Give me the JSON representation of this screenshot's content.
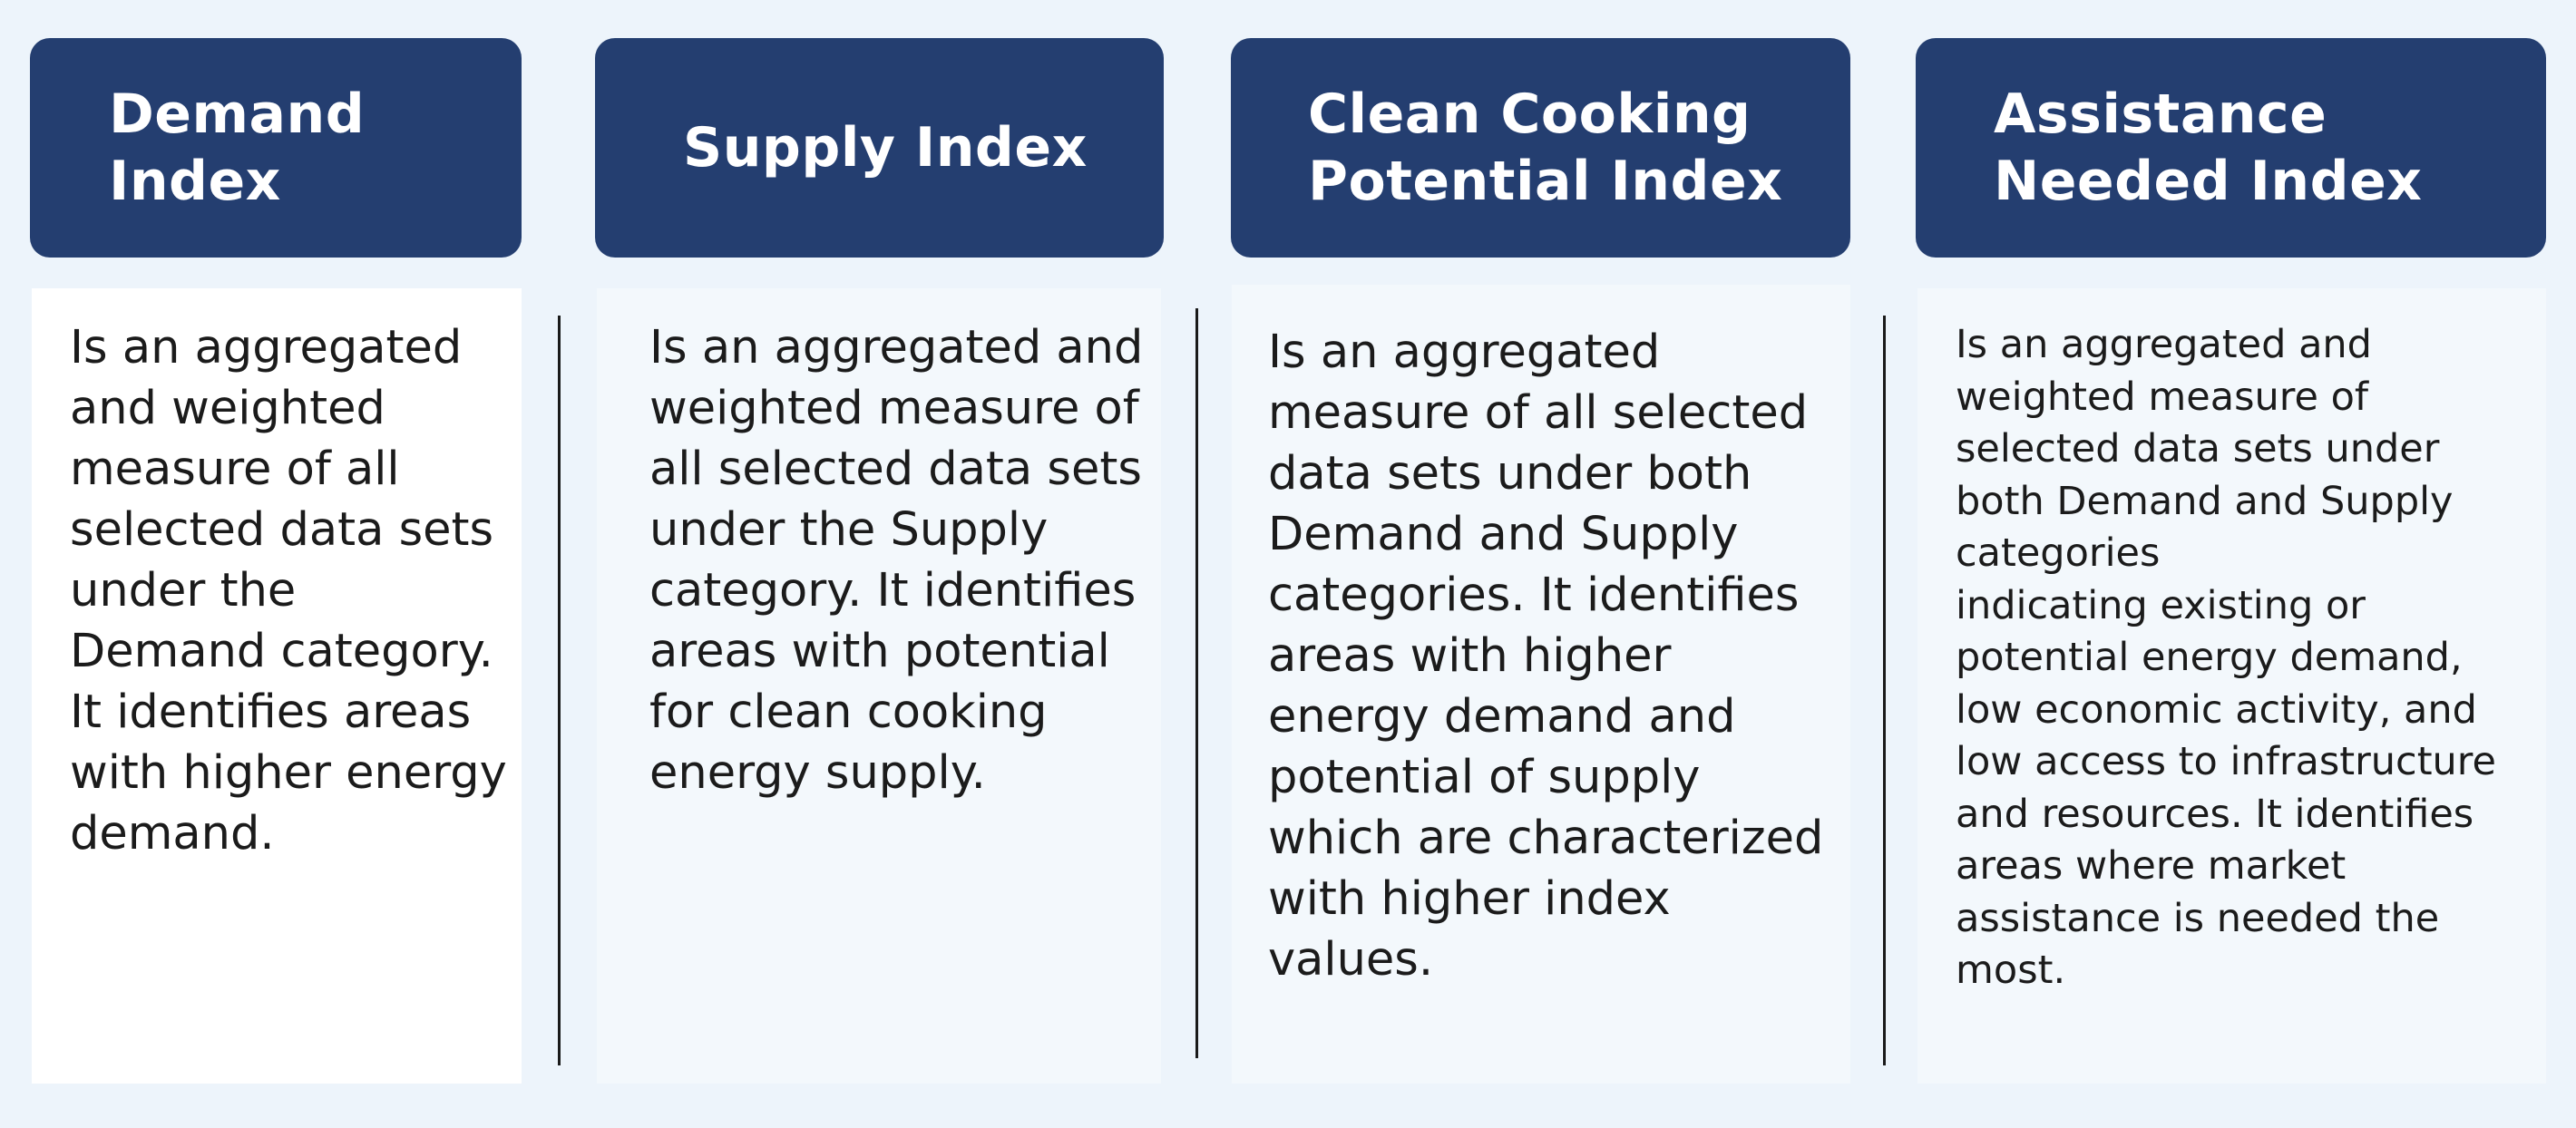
{
  "cards": [
    {
      "title": "Demand\nIndex",
      "description": "Is an aggregated\nand weighted\nmeasure of all\nselected data sets\nunder the\nDemand category.\nIt identifies areas\nwith higher energy\ndemand."
    },
    {
      "title": "Supply Index",
      "description": "Is an aggregated and\nweighted measure of\nall selected data sets\nunder the Supply\ncategory. It identifies\nareas with potential\nfor clean cooking\nenergy supply."
    },
    {
      "title": "Clean Cooking\nPotential Index",
      "description": "Is an aggregated\nmeasure of all selected\ndata sets under both\nDemand and Supply\ncategories. It identifies\nareas with higher\nenergy demand and\npotential of supply\nwhich are characterized\nwith higher index values."
    },
    {
      "title": "Assistance\nNeeded Index",
      "description": "Is an aggregated and\nweighted measure of\nselected data sets under\nboth Demand and Supply\ncategories\nindicating  existing or\npotential energy demand,\nlow economic activity, and\nlow access to infrastructure\nand resources. It identifies\nareas where market\nassistance is needed the\nmost."
    }
  ],
  "colors": {
    "background": "#edf4fb",
    "header": "#243e70",
    "header_text": "#ffffff",
    "body_first": "#ffffff",
    "body_other": "#f3f8fc",
    "divider": "#1a1a1a",
    "text": "#1b1b1b"
  }
}
